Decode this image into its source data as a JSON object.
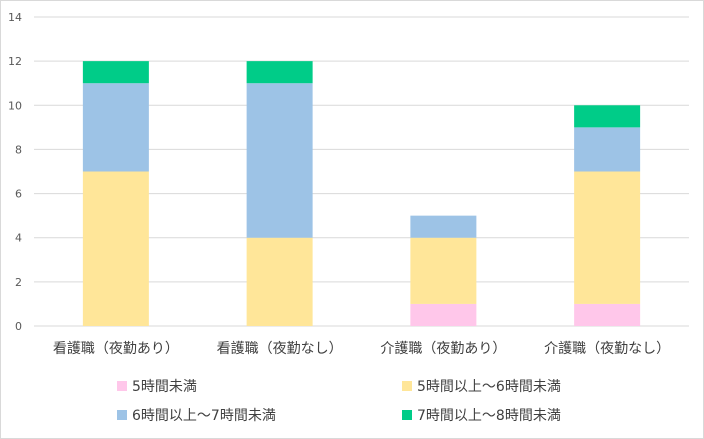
{
  "chart_data": {
    "type": "bar",
    "stacked": true,
    "categories": [
      "看護職（夜勤あり）",
      "看護職（夜勤なし）",
      "介護職（夜勤あり）",
      "介護職（夜勤なし）"
    ],
    "series": [
      {
        "name": "5時間未満",
        "color": "#ffc7ea",
        "values": [
          0,
          0,
          1,
          1
        ]
      },
      {
        "name": "5時間以上～6時間未満",
        "color": "#ffe699",
        "values": [
          7,
          4,
          3,
          6
        ]
      },
      {
        "name": "6時間以上～7時間未満",
        "color": "#9dc3e6",
        "values": [
          4,
          7,
          1,
          2
        ]
      },
      {
        "name": "7時間以上～8時間未満",
        "color": "#00cc88",
        "values": [
          1,
          1,
          0,
          1
        ]
      }
    ],
    "ylim": [
      0,
      14
    ],
    "yticks": [
      0,
      2,
      4,
      6,
      8,
      10,
      12,
      14
    ],
    "grid": true,
    "legend_position": "bottom"
  }
}
